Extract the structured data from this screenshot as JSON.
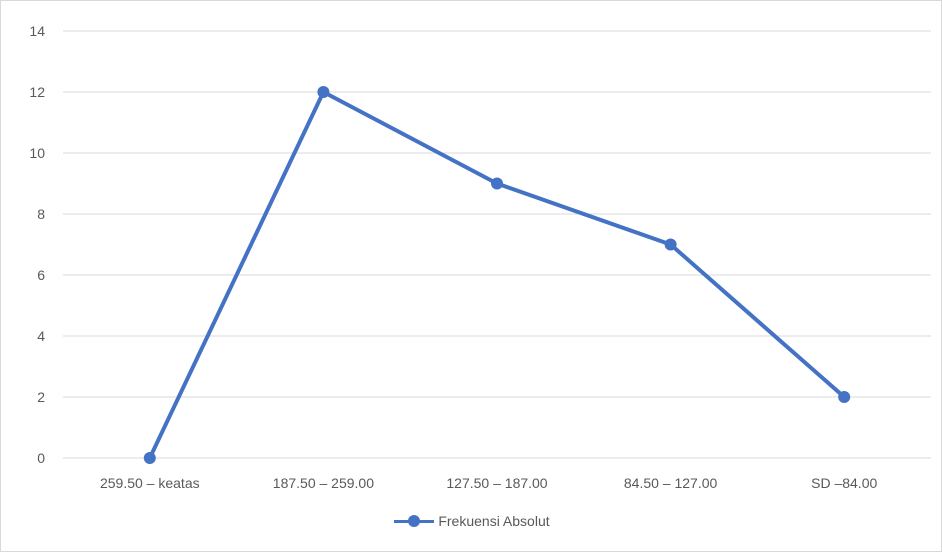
{
  "chart_data": {
    "type": "line",
    "title": "",
    "xlabel": "",
    "ylabel": "",
    "categories": [
      "259.50 – keatas",
      "187.50 – 259.00",
      "127.50 – 187.00",
      "84.50 – 127.00",
      "SD –84.00"
    ],
    "series": [
      {
        "name": "Frekuensi Absolut",
        "values": [
          0,
          12,
          9,
          7,
          2
        ],
        "color": "#4472c4"
      }
    ],
    "ylim": [
      0,
      14
    ],
    "yticks": [
      0,
      2,
      4,
      6,
      8,
      10,
      12,
      14
    ],
    "grid": true,
    "legend_position": "bottom",
    "gridline_color": "#d9d9d9"
  }
}
